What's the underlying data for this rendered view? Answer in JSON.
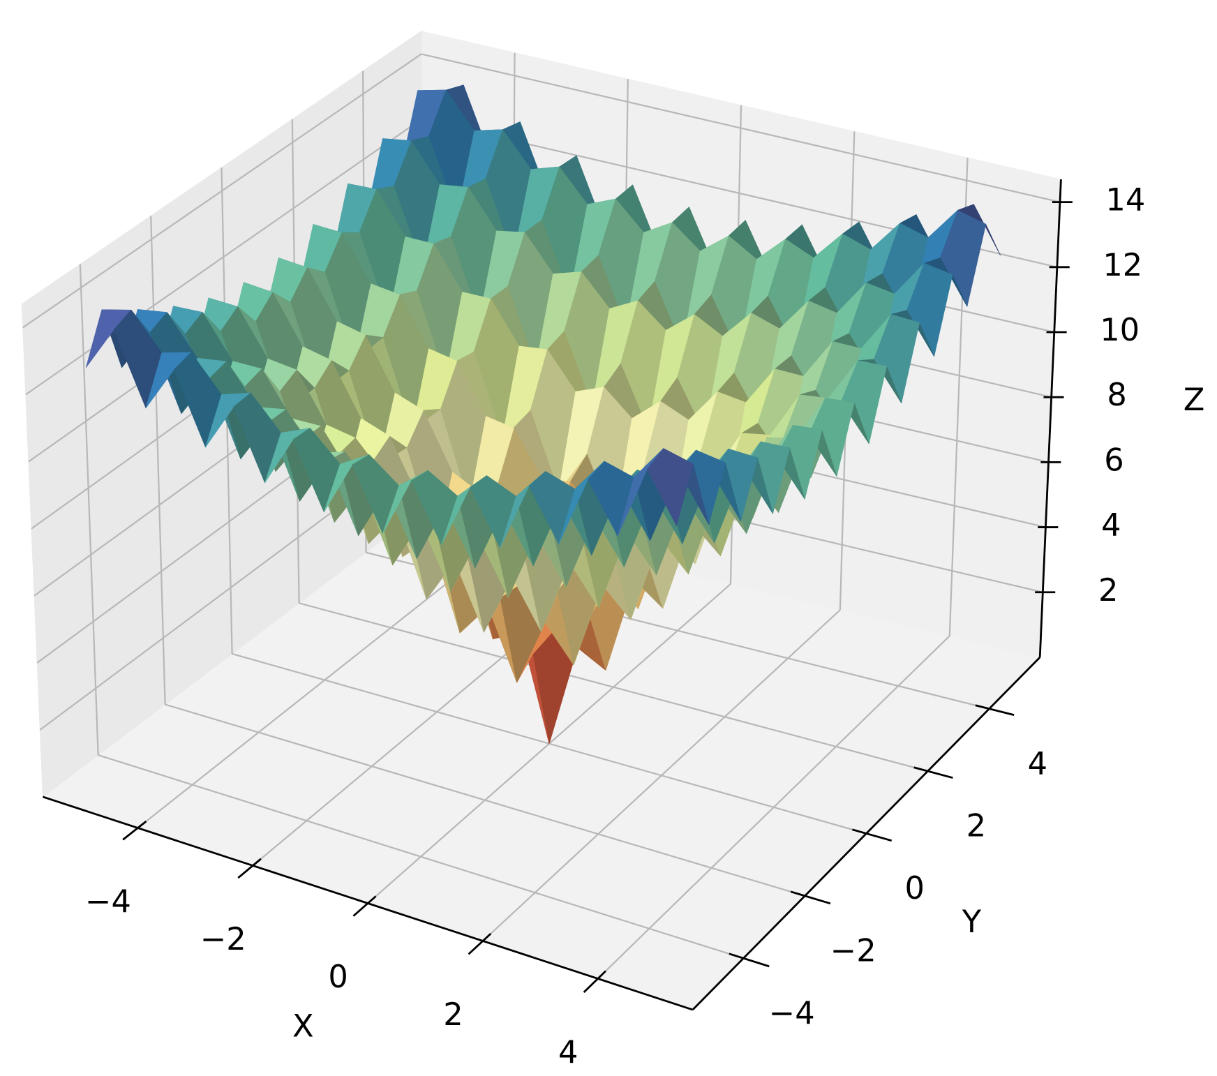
{
  "chart_data": {
    "type": "surface",
    "xlabel": "X",
    "ylabel": "Y",
    "zlabel": "Z",
    "x": [
      -5,
      -4.5,
      -4,
      -3.5,
      -3,
      -2.5,
      -2,
      -1.5,
      -1,
      -0.5,
      0,
      0.5,
      1,
      1.5,
      2,
      2.5,
      3,
      3.5,
      4,
      4.5,
      5
    ],
    "y": [
      -5,
      -4.5,
      -4,
      -3.5,
      -3,
      -2.5,
      -2,
      -1.5,
      -1,
      -0.5,
      0,
      0.5,
      1,
      1.5,
      2,
      2.5,
      3,
      3.5,
      4,
      4.5,
      5
    ],
    "z": [
      [
        12.64,
        14,
        11.91,
        13.28,
        11.23,
        12.65,
        10.66,
        12.16,
        10.28,
        11.89,
        10.14,
        11.89,
        10.28,
        12.16,
        10.66,
        12.65,
        11.23,
        13.28,
        11.91,
        14,
        12.64
      ],
      [
        14,
        14.22,
        13.18,
        13.42,
        12.41,
        12.69,
        11.75,
        12.12,
        11.3,
        11.81,
        11.14,
        11.81,
        11.3,
        12.12,
        11.75,
        12.69,
        12.41,
        13.42,
        13.18,
        14.22,
        14
      ],
      [
        11.91,
        13.18,
        11.01,
        12.29,
        10.14,
        11.46,
        9.37,
        10.79,
        8.84,
        10.41,
        8.64,
        10.41,
        8.84,
        10.79,
        9.37,
        11.46,
        10.14,
        12.29,
        11.01,
        13.18,
        11.91
      ],
      [
        13.28,
        13.42,
        12.29,
        12.42,
        11.3,
        11.46,
        10.41,
        10.68,
        9.77,
        10.22,
        9.53,
        10.22,
        9.77,
        10.68,
        10.41,
        11.46,
        11.3,
        12.42,
        12.29,
        13.42,
        13.28
      ],
      [
        11.23,
        12.41,
        10.14,
        11.3,
        9.02,
        10.21,
        7.99,
        9.27,
        7.21,
        8.71,
        6.92,
        8.71,
        7.21,
        9.27,
        7.99,
        10.21,
        9.02,
        11.3,
        10.14,
        12.41,
        11.23
      ],
      [
        12.65,
        12.69,
        11.46,
        11.46,
        10.21,
        10.22,
        9,
        9.11,
        8.05,
        8.4,
        7.67,
        8.4,
        8.05,
        9.11,
        9,
        10.22,
        10.21,
        11.46,
        11.46,
        12.69,
        12.65
      ],
      [
        10.66,
        11.75,
        9.37,
        10.41,
        7.99,
        9,
        6.59,
        7.67,
        5.42,
        6.78,
        4.93,
        6.78,
        5.42,
        7.67,
        6.59,
        9,
        7.99,
        10.41,
        9.37,
        11.75,
        10.66
      ],
      [
        12.16,
        12.12,
        10.79,
        10.68,
        9.27,
        9.11,
        7.67,
        7.53,
        6.22,
        6.36,
        5.54,
        6.36,
        6.22,
        7.53,
        7.67,
        9.11,
        9.27,
        10.68,
        10.79,
        12.12,
        12.16
      ],
      [
        10.28,
        11.3,
        8.84,
        9.77,
        7.21,
        8.05,
        5.42,
        6.22,
        3.63,
        4.64,
        2.64,
        4.64,
        3.63,
        6.22,
        5.42,
        8.05,
        7.21,
        9.77,
        8.84,
        11.3,
        10.28
      ],
      [
        11.89,
        11.81,
        10.41,
        10.22,
        8.71,
        8.4,
        6.78,
        6.36,
        4.64,
        4.25,
        3.08,
        4.25,
        4.64,
        6.36,
        6.78,
        8.4,
        8.71,
        10.22,
        10.41,
        11.81,
        11.89
      ],
      [
        10.14,
        11.14,
        8.64,
        9.53,
        6.92,
        7.67,
        4.93,
        5.54,
        2.64,
        3.08,
        0,
        3.08,
        2.64,
        5.54,
        4.93,
        7.67,
        6.92,
        9.53,
        8.64,
        11.14,
        10.14
      ],
      [
        11.89,
        11.81,
        10.41,
        10.22,
        8.71,
        8.4,
        6.78,
        6.36,
        4.64,
        4.25,
        3.08,
        4.25,
        4.64,
        6.36,
        6.78,
        8.4,
        8.71,
        10.22,
        10.41,
        11.81,
        11.89
      ],
      [
        10.28,
        11.3,
        8.84,
        9.77,
        7.21,
        8.05,
        5.42,
        6.22,
        3.63,
        4.64,
        2.64,
        4.64,
        3.63,
        6.22,
        5.42,
        8.05,
        7.21,
        9.77,
        8.84,
        11.3,
        10.28
      ],
      [
        12.16,
        12.12,
        10.79,
        10.68,
        9.27,
        9.11,
        7.67,
        7.53,
        6.22,
        6.36,
        5.54,
        6.36,
        6.22,
        7.53,
        7.67,
        9.11,
        9.27,
        10.68,
        10.79,
        12.12,
        12.16
      ],
      [
        10.66,
        11.75,
        9.37,
        10.41,
        7.99,
        9,
        6.59,
        7.67,
        5.42,
        6.78,
        4.93,
        6.78,
        5.42,
        7.67,
        6.59,
        9,
        7.99,
        10.41,
        9.37,
        11.75,
        10.66
      ],
      [
        12.65,
        12.69,
        11.46,
        11.46,
        10.21,
        10.22,
        9,
        9.11,
        8.05,
        8.4,
        7.67,
        8.4,
        8.05,
        9.11,
        9,
        10.22,
        10.21,
        11.46,
        11.46,
        12.69,
        12.65
      ],
      [
        11.23,
        12.41,
        10.14,
        11.3,
        9.02,
        10.21,
        7.99,
        9.27,
        7.21,
        8.71,
        6.92,
        8.71,
        7.21,
        9.27,
        7.99,
        10.21,
        9.02,
        11.3,
        10.14,
        12.41,
        11.23
      ],
      [
        13.28,
        13.42,
        12.29,
        12.42,
        11.3,
        11.46,
        10.41,
        10.68,
        9.77,
        10.22,
        9.53,
        10.22,
        9.77,
        10.68,
        10.41,
        11.46,
        11.3,
        12.42,
        12.29,
        13.42,
        13.28
      ],
      [
        11.91,
        13.18,
        11.01,
        12.29,
        10.14,
        11.46,
        9.37,
        10.79,
        8.84,
        10.41,
        8.64,
        10.41,
        8.84,
        10.79,
        9.37,
        11.46,
        10.14,
        12.29,
        11.01,
        13.18,
        11.91
      ],
      [
        14,
        14.22,
        13.18,
        13.42,
        12.41,
        12.69,
        11.75,
        12.12,
        11.3,
        11.81,
        11.14,
        11.81,
        11.3,
        12.12,
        11.75,
        12.69,
        12.41,
        13.42,
        13.18,
        14.22,
        14
      ],
      [
        12.64,
        14,
        11.91,
        13.28,
        11.23,
        12.65,
        10.66,
        12.16,
        10.28,
        11.89,
        10.14,
        11.89,
        10.28,
        12.16,
        10.66,
        12.65,
        11.23,
        13.28,
        11.91,
        14,
        12.64
      ]
    ],
    "colormap": [
      "#9e0142",
      "#d53e4f",
      "#f46d43",
      "#fdae61",
      "#fee08b",
      "#ffffbf",
      "#e6f598",
      "#abdda4",
      "#66c2a5",
      "#3288bd",
      "#5e4fa2"
    ],
    "xlim": [
      -5.65,
      5.65
    ],
    "ylim": [
      -5.65,
      5.65
    ],
    "zlim": [
      0,
      14.7
    ],
    "xticks": [
      {
        "value": -4,
        "label": "−4"
      },
      {
        "value": -2,
        "label": "−2"
      },
      0,
      2,
      4
    ],
    "yticks": [
      {
        "value": -4,
        "label": "−4"
      },
      {
        "value": -2,
        "label": "−2"
      },
      0,
      2,
      4
    ],
    "zticks": [
      2,
      4,
      6,
      8,
      10,
      12,
      14
    ],
    "grid": true
  }
}
